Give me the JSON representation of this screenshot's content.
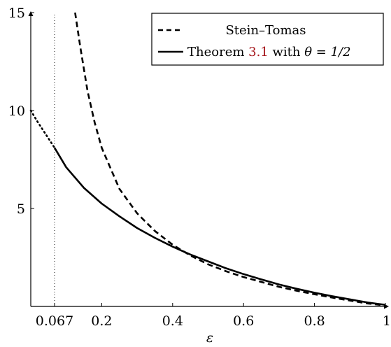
{
  "chart_data": {
    "type": "line",
    "xlabel": "ε",
    "ylabel": "",
    "xlim": [
      0.0,
      1.0
    ],
    "ylim": [
      0,
      15
    ],
    "x_ticks": [
      {
        "value": 0.067,
        "label": "0.067"
      },
      {
        "value": 0.2,
        "label": "0.2"
      },
      {
        "value": 0.4,
        "label": "0.4"
      },
      {
        "value": 0.6,
        "label": "0.6"
      },
      {
        "value": 0.8,
        "label": "0.8"
      },
      {
        "value": 1.0,
        "label": "1"
      }
    ],
    "y_ticks": [
      {
        "value": 5,
        "label": "5"
      },
      {
        "value": 10,
        "label": "10"
      },
      {
        "value": 15,
        "label": "15"
      }
    ],
    "reference_line": {
      "x": 0.067,
      "style": "dotted"
    },
    "legend_position": "top-right",
    "series": [
      {
        "name": "Stein–Tomas",
        "style": "dashed",
        "color": "#000000",
        "x": [
          0.125,
          0.14,
          0.16,
          0.18,
          0.2,
          0.25,
          0.3,
          0.35,
          0.4,
          0.45,
          0.5,
          0.55,
          0.6,
          0.65,
          0.7,
          0.75,
          0.8,
          0.85,
          0.9,
          0.95,
          1.0
        ],
        "y": [
          15.0,
          13.2,
          11.0,
          9.4,
          8.1,
          6.0,
          4.75,
          3.85,
          3.15,
          2.6,
          2.15,
          1.8,
          1.5,
          1.25,
          1.0,
          0.8,
          0.62,
          0.45,
          0.3,
          0.15,
          0.05
        ]
      },
      {
        "name": "Theorem 3.1 with θ = 1/2",
        "legend_parts": {
          "prefix": "Theorem ",
          "ref": "3.1",
          "middle": " with ",
          "math": "θ = 1/2"
        },
        "ref_color": "#a5161b",
        "style": "solid",
        "color": "#000000",
        "x": [
          0.067,
          0.1,
          0.15,
          0.2,
          0.25,
          0.3,
          0.35,
          0.4,
          0.45,
          0.5,
          0.55,
          0.6,
          0.65,
          0.7,
          0.75,
          0.8,
          0.85,
          0.9,
          0.95,
          1.0
        ],
        "y": [
          8.1,
          7.1,
          6.05,
          5.25,
          4.6,
          4.0,
          3.5,
          3.05,
          2.65,
          2.3,
          1.95,
          1.65,
          1.38,
          1.12,
          0.9,
          0.7,
          0.52,
          0.36,
          0.2,
          0.08
        ]
      },
      {
        "name": "",
        "style": "dotted",
        "color": "#000000",
        "x": [
          0.0,
          0.02,
          0.04,
          0.067
        ],
        "y": [
          10.0,
          9.4,
          8.85,
          8.1
        ]
      }
    ]
  }
}
